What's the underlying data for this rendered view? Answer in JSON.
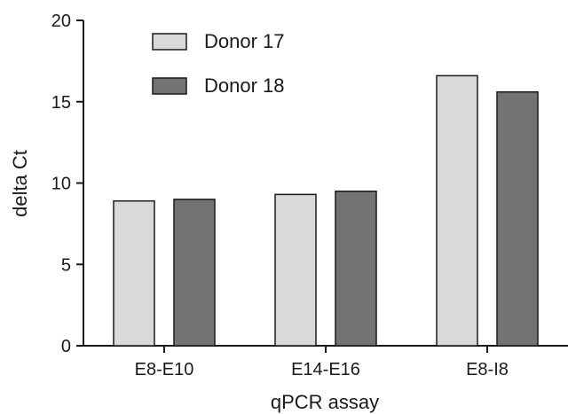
{
  "chart_data": {
    "type": "bar",
    "categories": [
      "E8-E10",
      "E14-E16",
      "E8-I8"
    ],
    "series": [
      {
        "name": "Donor 17",
        "values": [
          8.9,
          9.3,
          16.6
        ],
        "color": "#d9d9d9"
      },
      {
        "name": "Donor 18",
        "values": [
          9.0,
          9.5,
          15.6
        ],
        "color": "#737373"
      }
    ],
    "xlabel": "qPCR assay",
    "ylabel": "delta Ct",
    "ylim": [
      0,
      20
    ],
    "yticks": [
      0,
      5,
      10,
      15,
      20
    ],
    "legend_position": "top-left",
    "grid": false
  }
}
